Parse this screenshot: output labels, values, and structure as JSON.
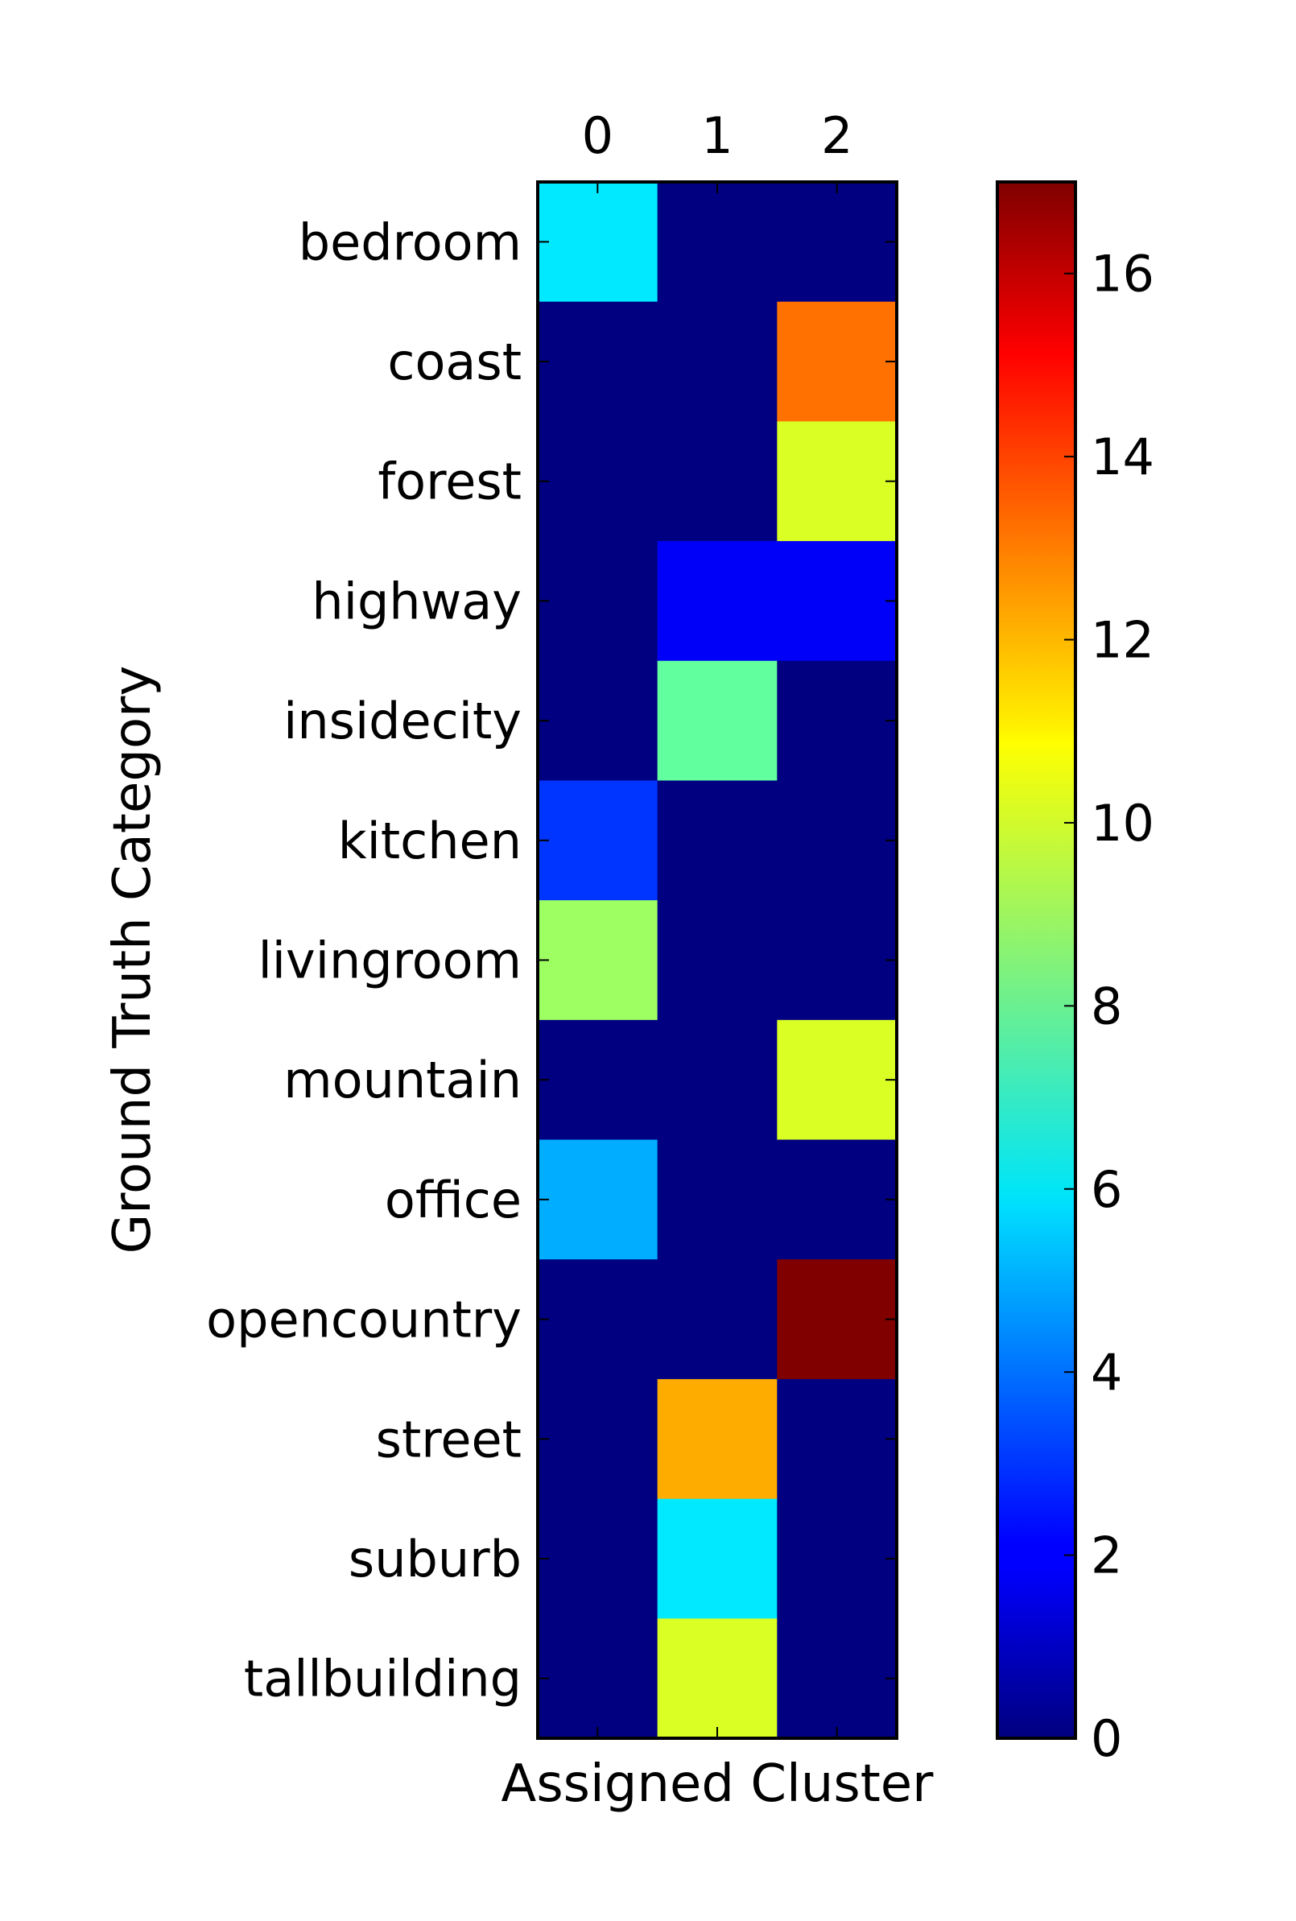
{
  "chart_data": {
    "type": "heatmap",
    "title": "",
    "xlabel": "Assigned Cluster",
    "ylabel": "Ground Truth Category",
    "x_categories": [
      "0",
      "1",
      "2"
    ],
    "y_categories": [
      "bedroom",
      "coast",
      "forest",
      "highway",
      "insidecity",
      "kitchen",
      "livingroom",
      "mountain",
      "office",
      "opencountry",
      "street",
      "suburb",
      "tallbuilding"
    ],
    "values": [
      [
        6,
        0,
        0
      ],
      [
        0,
        0,
        13
      ],
      [
        0,
        0,
        10
      ],
      [
        0,
        2,
        2
      ],
      [
        0,
        8,
        0
      ],
      [
        3,
        0,
        0
      ],
      [
        9,
        0,
        0
      ],
      [
        0,
        0,
        10
      ],
      [
        5,
        0,
        0
      ],
      [
        0,
        0,
        17
      ],
      [
        0,
        12,
        0
      ],
      [
        0,
        6,
        0
      ],
      [
        0,
        10,
        0
      ]
    ],
    "colorbar": {
      "min": 0,
      "max": 17,
      "ticks": [
        0,
        2,
        4,
        6,
        8,
        10,
        12,
        14,
        16
      ],
      "colormap": "jet"
    },
    "grid": false,
    "legend": "none"
  }
}
